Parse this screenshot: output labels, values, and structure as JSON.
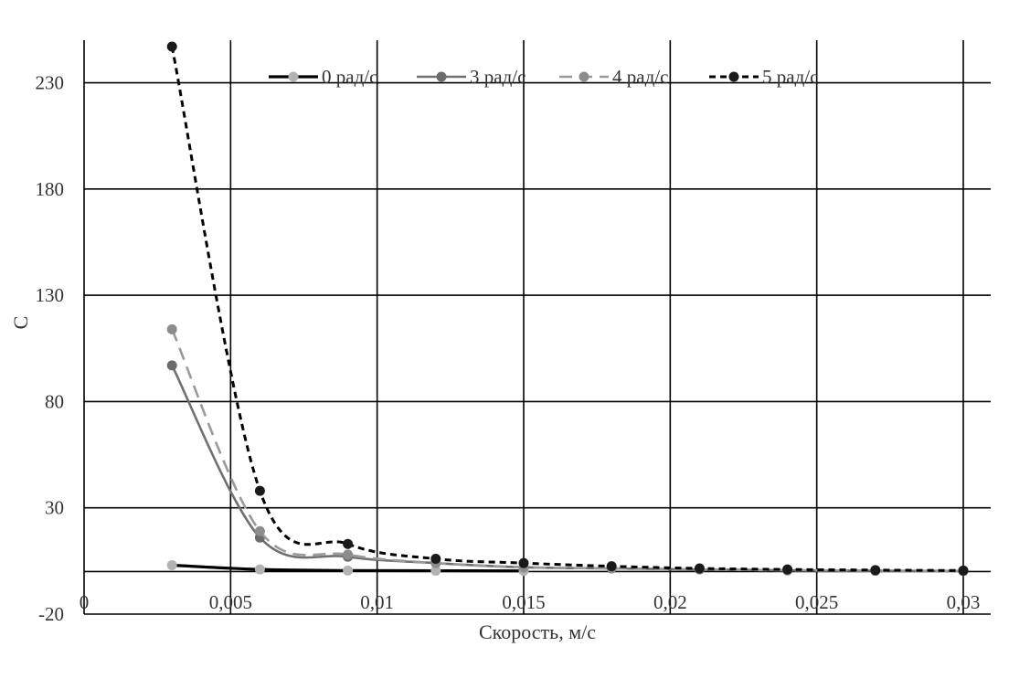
{
  "chart_data": {
    "type": "line",
    "title": "",
    "xlabel": "Скорость, м/с",
    "ylabel": "С",
    "xlim": [
      0,
      0.03
    ],
    "ylim": [
      -20,
      250
    ],
    "x_ticks": [
      "0",
      "0,005",
      "0,01",
      "0,015",
      "0,02",
      "0,025",
      "0,03"
    ],
    "x_tick_values": [
      0,
      0.005,
      0.01,
      0.015,
      0.02,
      0.025,
      0.03
    ],
    "y_ticks": [
      "-20",
      "30",
      "80",
      "130",
      "180",
      "230"
    ],
    "y_tick_values": [
      -20,
      30,
      80,
      130,
      180,
      230
    ],
    "grid": true,
    "legend_position": "top",
    "series": [
      {
        "name": "0 рад/с",
        "color": "#000000",
        "marker_color": "#b3b3b3",
        "dash": "solid",
        "x": [
          0.003,
          0.006,
          0.009,
          0.012,
          0.015
        ],
        "y": [
          3,
          1,
          0.5,
          0.4,
          0.3
        ]
      },
      {
        "name": "3 рад/с",
        "color": "#707070",
        "marker_color": "#6b6b6b",
        "dash": "solid",
        "x": [
          0.003,
          0.006,
          0.009,
          0.012,
          0.015,
          0.018,
          0.021,
          0.024,
          0.027,
          0.03
        ],
        "y": [
          97,
          16,
          7,
          4,
          2,
          1.5,
          1,
          0.6,
          0.4,
          0.3
        ]
      },
      {
        "name": "4 рад/с",
        "color": "#9a9a9a",
        "marker_color": "#8c8c8c",
        "dash": "dashed",
        "x": [
          0.003,
          0.006,
          0.009,
          0.012,
          0.015,
          0.018,
          0.021,
          0.024,
          0.027,
          0.03
        ],
        "y": [
          114,
          19,
          8,
          4,
          2,
          1.5,
          1,
          0.6,
          0.4,
          0.3
        ]
      },
      {
        "name": "5 рад/с",
        "color": "#000000",
        "marker_color": "#1a1a1a",
        "dash": "dotted",
        "x": [
          0.003,
          0.006,
          0.009,
          0.012,
          0.015,
          0.018,
          0.021,
          0.024,
          0.027,
          0.03
        ],
        "y": [
          247,
          38,
          13,
          6,
          4,
          2.5,
          1.5,
          1,
          0.7,
          0.5
        ]
      }
    ]
  }
}
